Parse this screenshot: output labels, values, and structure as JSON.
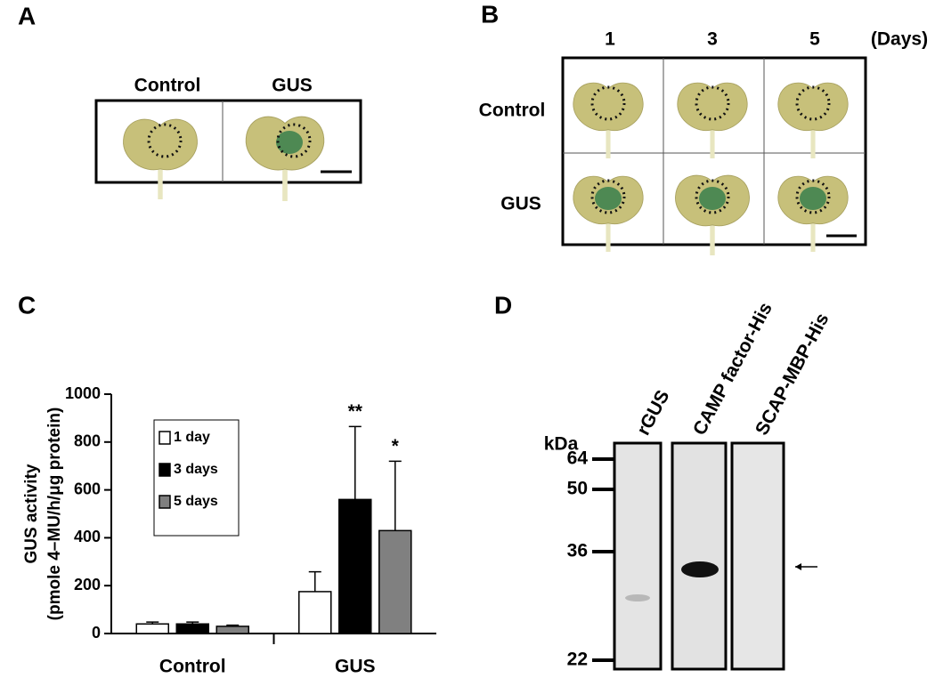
{
  "panels": {
    "A": {
      "label": "A",
      "columns": [
        "Control",
        "GUS"
      ]
    },
    "B": {
      "label": "B",
      "columns": [
        "1",
        "3",
        "5"
      ],
      "unit": "(Days)",
      "rows": [
        "Control",
        "GUS"
      ]
    },
    "C": {
      "label": "C"
    },
    "D": {
      "label": "D",
      "unit": "kDa",
      "lanes": [
        "rGUS",
        "CAMP factor-His",
        "SCAP-MBP-His"
      ],
      "markers": [
        64,
        50,
        36,
        22
      ]
    }
  },
  "chart_data": {
    "type": "bar",
    "ylabel": [
      "GUS activity",
      "(pmole 4–MU/h/μg protein)"
    ],
    "categories": [
      "Control",
      "GUS"
    ],
    "series": [
      {
        "name": "1 day",
        "color": "#ffffff",
        "values": [
          40,
          175
        ],
        "errors": [
          8,
          83
        ]
      },
      {
        "name": "3 days",
        "color": "#000000",
        "values": [
          40,
          560
        ],
        "errors": [
          8,
          305
        ]
      },
      {
        "name": "5 days",
        "color": "#808080",
        "values": [
          30,
          430
        ],
        "errors": [
          5,
          290
        ]
      }
    ],
    "annotations": [
      {
        "text": "**",
        "series": 1,
        "category": 1
      },
      {
        "text": "*",
        "series": 2,
        "category": 1
      }
    ],
    "ylim": [
      0,
      1000
    ],
    "yticks": [
      0,
      200,
      400,
      600,
      800,
      1000
    ],
    "legend": "upper left"
  }
}
